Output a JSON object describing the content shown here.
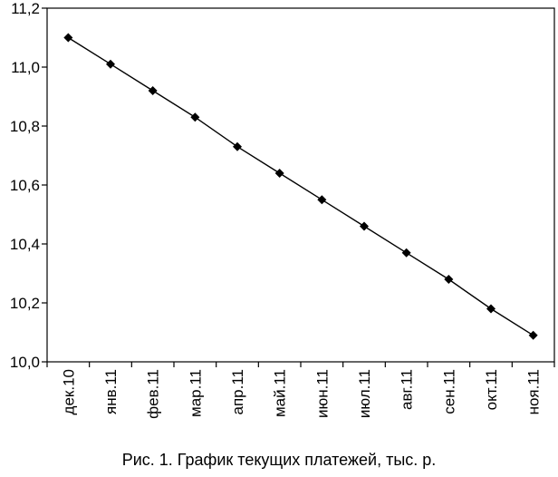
{
  "chart_data": {
    "type": "line",
    "title": "",
    "xlabel": "",
    "ylabel": "",
    "categories": [
      "дек.10",
      "янв.11",
      "фев.11",
      "мар.11",
      "апр.11",
      "май.11",
      "июн.11",
      "июл.11",
      "авг.11",
      "сен.11",
      "окт.11",
      "ноя.11"
    ],
    "series": [
      {
        "values": [
          11.1,
          11.01,
          10.92,
          10.83,
          10.73,
          10.64,
          10.55,
          10.46,
          10.37,
          10.28,
          10.18,
          10.09
        ]
      }
    ],
    "ylim": [
      10.0,
      11.2
    ],
    "yticks": [
      "10,0",
      "10,2",
      "10,4",
      "10,6",
      "10,8",
      "11,0",
      "11,2"
    ],
    "grid": false,
    "legend": "none",
    "marker": "diamond",
    "line_color": "#000000"
  },
  "caption": "Рис. 1. График текущих платежей, тыс. р."
}
